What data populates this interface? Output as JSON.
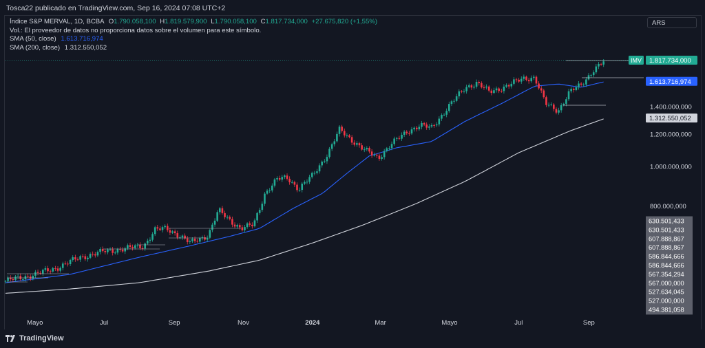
{
  "header": {
    "publisher": "Tosca22 publicado en TradingView.com, Sep 16, 2024 07:08 UTC+2"
  },
  "legend": {
    "symbol": "Índice S&P MERVAL, 1D, BCBA",
    "o_label": "O",
    "o": "1.790.058,100",
    "h_label": "H",
    "h": "1.819.579,900",
    "l_label": "L",
    "l": "1.790.058,100",
    "c_label": "C",
    "c": "1.817.734,000",
    "change": "+27.675,820 (+1,55%)",
    "volume_note": "Vol.: El proveedor de datos no proporciona datos sobre el volumen para este símbolo.",
    "sma50_label": "SMA (50, close)",
    "sma50_value": "1.613.716,974",
    "sma200_label": "SMA (200, close)",
    "sma200_value": "1.312.550,052"
  },
  "currency": "ARS",
  "footer": {
    "brand": "TradingView"
  },
  "colors": {
    "background": "#131722",
    "up": "#22ab94",
    "down": "#f23645",
    "sma50": "#2962ff",
    "sma200": "#d1d4dc",
    "text": "#d1d4dc"
  },
  "chart_data": {
    "type": "candlestick",
    "scale": "log",
    "ylim": [
      480000,
      2000000
    ],
    "x_ticks": [
      "Mayo",
      "Jul",
      "Sep",
      "Nov",
      "2024",
      "Mar",
      "Mayo",
      "Jul",
      "Sep"
    ],
    "y_ticks": [
      "1.400.000,000",
      "1.200.000,000",
      "1.000.000,000",
      "800.000,000"
    ],
    "last_price": {
      "label": "IMV",
      "value": "1.817.734,000"
    },
    "sma50_tag": "1.613.716,974",
    "sma200_tag": "1.312.550,052",
    "price_levels": [
      "630.501,433",
      "630.501,433",
      "607.888,867",
      "607.888,867",
      "586.844,666",
      "586.844,666",
      "567.354,294",
      "567.000,000",
      "527.634,045",
      "527.000,000",
      "494.381,058"
    ],
    "close_path": [
      [
        "2023-04-05",
        525000
      ],
      [
        "2023-05-01",
        545000
      ],
      [
        "2023-05-20",
        565000
      ],
      [
        "2023-06-10",
        600000
      ],
      [
        "2023-07-01",
        620000
      ],
      [
        "2023-07-20",
        630000
      ],
      [
        "2023-08-05",
        640000
      ],
      [
        "2023-08-15",
        700000
      ],
      [
        "2023-08-25",
        705000
      ],
      [
        "2023-09-05",
        680000
      ],
      [
        "2023-09-15",
        650000
      ],
      [
        "2023-10-01",
        680000
      ],
      [
        "2023-10-10",
        780000
      ],
      [
        "2023-10-20",
        740000
      ],
      [
        "2023-10-30",
        705000
      ],
      [
        "2023-11-10",
        720000
      ],
      [
        "2023-11-20",
        860000
      ],
      [
        "2023-12-01",
        930000
      ],
      [
        "2023-12-10",
        940000
      ],
      [
        "2023-12-20",
        880000
      ],
      [
        "2024-01-01",
        950000
      ],
      [
        "2024-01-15",
        1080000
      ],
      [
        "2024-01-25",
        1230000
      ],
      [
        "2024-02-05",
        1160000
      ],
      [
        "2024-02-15",
        1100000
      ],
      [
        "2024-02-28",
        1050000
      ],
      [
        "2024-03-10",
        1130000
      ],
      [
        "2024-03-25",
        1220000
      ],
      [
        "2024-04-05",
        1260000
      ],
      [
        "2024-04-15",
        1240000
      ],
      [
        "2024-04-30",
        1400000
      ],
      [
        "2024-05-15",
        1560000
      ],
      [
        "2024-05-25",
        1600000
      ],
      [
        "2024-06-05",
        1520000
      ],
      [
        "2024-06-20",
        1570000
      ],
      [
        "2024-07-05",
        1640000
      ],
      [
        "2024-07-15",
        1650000
      ],
      [
        "2024-07-25",
        1420000
      ],
      [
        "2024-08-05",
        1370000
      ],
      [
        "2024-08-15",
        1520000
      ],
      [
        "2024-08-25",
        1580000
      ],
      [
        "2024-09-05",
        1720000
      ],
      [
        "2024-09-16",
        1817734
      ]
    ],
    "sma50_path": [
      [
        "2023-04-05",
        520000
      ],
      [
        "2023-06-01",
        545000
      ],
      [
        "2023-08-01",
        600000
      ],
      [
        "2023-09-15",
        640000
      ],
      [
        "2023-10-20",
        675000
      ],
      [
        "2023-11-15",
        705000
      ],
      [
        "2023-12-15",
        790000
      ],
      [
        "2024-01-10",
        860000
      ],
      [
        "2024-01-31",
        960000
      ],
      [
        "2024-02-20",
        1060000
      ],
      [
        "2024-03-15",
        1110000
      ],
      [
        "2024-04-15",
        1150000
      ],
      [
        "2024-05-15",
        1290000
      ],
      [
        "2024-06-15",
        1420000
      ],
      [
        "2024-07-15",
        1570000
      ],
      [
        "2024-08-05",
        1590000
      ],
      [
        "2024-08-25",
        1560000
      ],
      [
        "2024-09-16",
        1613717
      ]
    ],
    "sma200_path": [
      [
        "2023-04-05",
        490000
      ],
      [
        "2023-06-01",
        502000
      ],
      [
        "2023-08-01",
        520000
      ],
      [
        "2023-10-01",
        555000
      ],
      [
        "2023-11-15",
        590000
      ],
      [
        "2024-01-01",
        650000
      ],
      [
        "2024-02-15",
        720000
      ],
      [
        "2024-04-01",
        810000
      ],
      [
        "2024-05-15",
        920000
      ],
      [
        "2024-07-01",
        1080000
      ],
      [
        "2024-08-15",
        1220000
      ],
      [
        "2024-09-16",
        1312550
      ]
    ]
  }
}
